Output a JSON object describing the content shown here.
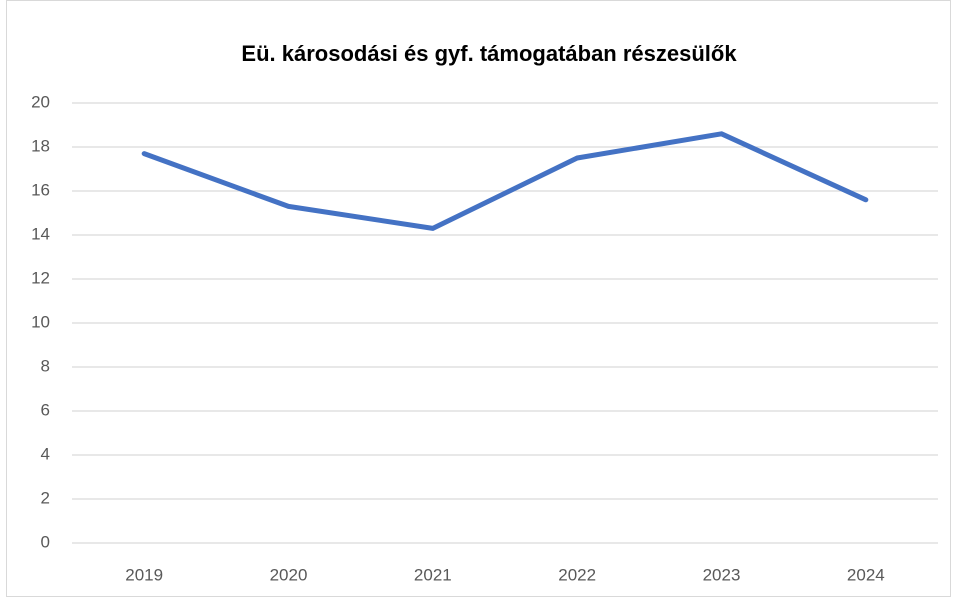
{
  "chart_data": {
    "type": "line",
    "title": "Eü. károsodási és gyf. támogatában részesülők",
    "categories": [
      "2019",
      "2020",
      "2021",
      "2022",
      "2023",
      "2024"
    ],
    "series": [
      {
        "name": null,
        "color": "#4472c4",
        "values": [
          17.7,
          15.3,
          14.3,
          17.5,
          18.6,
          15.6
        ]
      }
    ],
    "ylim": [
      0,
      20
    ],
    "yticks": [
      0,
      2,
      4,
      6,
      8,
      10,
      12,
      14,
      16,
      18,
      20
    ],
    "grid": true
  }
}
